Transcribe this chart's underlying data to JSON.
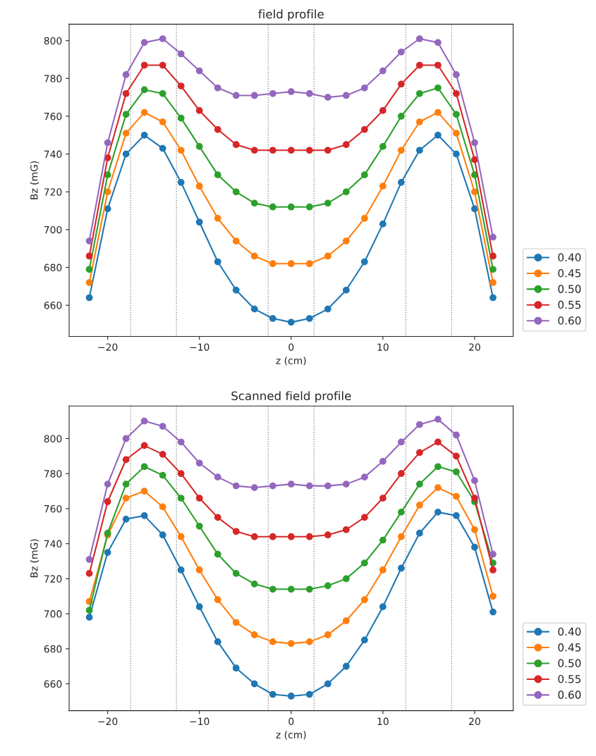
{
  "chart_data": [
    {
      "type": "line",
      "title": "field profile",
      "xlabel": "z (cm)",
      "ylabel": "Bz (mG)",
      "x": [
        -22,
        -20,
        -18,
        -16,
        -14,
        -12,
        -10,
        -8,
        -6,
        -4,
        -2,
        0,
        2,
        4,
        6,
        8,
        10,
        12,
        14,
        16,
        18,
        20,
        22
      ],
      "series": [
        {
          "name": "0.40",
          "color": "#1f77b4",
          "values": [
            664,
            711,
            740,
            750,
            743,
            725,
            704,
            683,
            668,
            658,
            653,
            651,
            653,
            658,
            668,
            683,
            703,
            725,
            742,
            750,
            740,
            711,
            664
          ]
        },
        {
          "name": "0.45",
          "color": "#ff7f0e",
          "values": [
            672,
            720,
            751,
            762,
            757,
            742,
            723,
            706,
            694,
            686,
            682,
            682,
            682,
            686,
            694,
            706,
            723,
            742,
            757,
            762,
            751,
            720,
            672
          ]
        },
        {
          "name": "0.50",
          "color": "#2ca02c",
          "values": [
            679,
            729,
            761,
            774,
            772,
            759,
            744,
            729,
            720,
            714,
            712,
            712,
            712,
            714,
            720,
            729,
            744,
            760,
            772,
            775,
            761,
            729,
            679
          ]
        },
        {
          "name": "0.55",
          "color": "#d62728",
          "values": [
            686,
            738,
            772,
            787,
            787,
            776,
            763,
            753,
            745,
            742,
            742,
            742,
            742,
            742,
            745,
            753,
            763,
            777,
            787,
            787,
            772,
            737,
            686
          ]
        },
        {
          "name": "0.60",
          "color": "#9467bd",
          "values": [
            694,
            746,
            782,
            799,
            801,
            793,
            784,
            775,
            771,
            771,
            772,
            773,
            772,
            770,
            771,
            775,
            784,
            794,
            801,
            799,
            782,
            746,
            696
          ]
        }
      ],
      "xlim": [
        -24.2,
        24.2
      ],
      "ylim": [
        643.5,
        808.7
      ],
      "xticks": [
        -20,
        -10,
        0,
        10,
        20
      ],
      "yticks": [
        660,
        680,
        700,
        720,
        740,
        760,
        780,
        800
      ],
      "ref_lines": [
        {
          "axis": "x",
          "value": -17.5,
          "color": "#808080",
          "line_style": "dotted"
        },
        {
          "axis": "x",
          "value": -12.5,
          "color": "#808080",
          "line_style": "dotted"
        },
        {
          "axis": "x",
          "value": -2.5,
          "color": "#808080",
          "line_style": "dotted"
        },
        {
          "axis": "x",
          "value": 2.5,
          "color": "#808080",
          "line_style": "dotted"
        },
        {
          "axis": "x",
          "value": 12.5,
          "color": "#808080",
          "line_style": "dotted"
        },
        {
          "axis": "x",
          "value": 17.5,
          "color": "#808080",
          "line_style": "dotted"
        }
      ],
      "legend": "bottom right",
      "marker": "circle",
      "line_style": "solid",
      "grid": false
    },
    {
      "type": "line",
      "title": "Scanned field profile",
      "xlabel": "z (cm)",
      "ylabel": "Bz (mG)",
      "x": [
        -22,
        -20,
        -18,
        -16,
        -14,
        -12,
        -10,
        -8,
        -6,
        -4,
        -2,
        0,
        2,
        4,
        6,
        8,
        10,
        12,
        14,
        16,
        18,
        20,
        22
      ],
      "series": [
        {
          "name": "0.40",
          "color": "#1f77b4",
          "values": [
            698,
            735,
            754,
            756,
            745,
            725,
            704,
            684,
            669,
            660,
            654,
            653,
            654,
            660,
            670,
            685,
            704,
            726,
            746,
            758,
            756,
            738,
            701
          ]
        },
        {
          "name": "0.45",
          "color": "#ff7f0e",
          "values": [
            707,
            745,
            766,
            770,
            761,
            744,
            725,
            708,
            695,
            688,
            684,
            683,
            684,
            688,
            696,
            708,
            725,
            744,
            762,
            772,
            767,
            748,
            710
          ]
        },
        {
          "name": "0.50",
          "color": "#2ca02c",
          "values": [
            702,
            746,
            774,
            784,
            779,
            766,
            750,
            734,
            723,
            717,
            714,
            714,
            714,
            716,
            720,
            729,
            742,
            758,
            774,
            784,
            781,
            764,
            729
          ]
        },
        {
          "name": "0.55",
          "color": "#d62728",
          "values": [
            723,
            764,
            788,
            796,
            791,
            780,
            766,
            755,
            747,
            744,
            744,
            744,
            744,
            745,
            748,
            755,
            766,
            780,
            792,
            798,
            790,
            766,
            725
          ]
        },
        {
          "name": "0.60",
          "color": "#9467bd",
          "values": [
            731,
            774,
            800,
            810,
            807,
            798,
            786,
            778,
            773,
            772,
            773,
            774,
            773,
            773,
            774,
            778,
            787,
            798,
            808,
            811,
            802,
            776,
            734
          ]
        }
      ],
      "xlim": [
        -24.2,
        24.2
      ],
      "ylim": [
        644.7,
        818.6
      ],
      "xticks": [
        -20,
        -10,
        0,
        10,
        20
      ],
      "yticks": [
        660,
        680,
        700,
        720,
        740,
        760,
        780,
        800
      ],
      "ref_lines": [
        {
          "axis": "x",
          "value": -17.5,
          "color": "#808080",
          "line_style": "dotted"
        },
        {
          "axis": "x",
          "value": -12.5,
          "color": "#808080",
          "line_style": "dotted"
        },
        {
          "axis": "x",
          "value": -2.5,
          "color": "#808080",
          "line_style": "dotted"
        },
        {
          "axis": "x",
          "value": 2.5,
          "color": "#808080",
          "line_style": "dotted"
        },
        {
          "axis": "x",
          "value": 12.5,
          "color": "#808080",
          "line_style": "dotted"
        },
        {
          "axis": "x",
          "value": 17.5,
          "color": "#808080",
          "line_style": "dotted"
        }
      ],
      "legend": "bottom right",
      "marker": "circle",
      "line_style": "solid",
      "grid": false
    }
  ]
}
